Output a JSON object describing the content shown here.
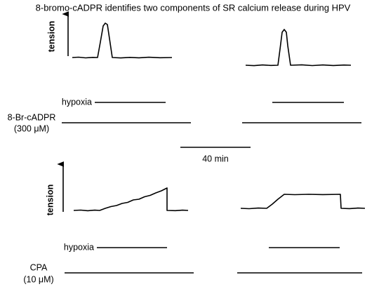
{
  "title": "8-bromo-cADPR identifies two components of SR calcium release during HPV",
  "panels": [
    {
      "y_label": "tension",
      "conditions": [
        {
          "label": "hypoxia"
        },
        {
          "label": "8-Br-cADPR",
          "sublabel": "(300 μM)"
        }
      ]
    },
    {
      "y_label": "tension",
      "conditions": [
        {
          "label": "hypoxia"
        },
        {
          "label": "CPA",
          "sublabel": "(10 μM)"
        }
      ]
    }
  ],
  "scale_bar": "40 min"
}
